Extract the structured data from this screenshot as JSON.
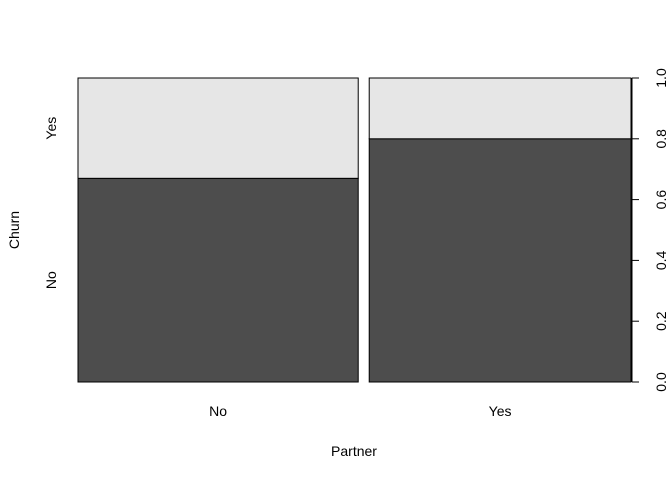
{
  "chart_data": {
    "type": "bar",
    "subtype": "spineplot",
    "xlabel": "Partner",
    "ylabel": "Churn",
    "categories": [
      "No",
      "Yes"
    ],
    "category_widths": [
      0.517,
      0.483
    ],
    "series": [
      {
        "name": "No",
        "values": [
          0.67,
          0.8
        ],
        "color": "#4d4d4d"
      },
      {
        "name": "Yes",
        "values": [
          0.33,
          0.2
        ],
        "color": "#e6e6e6"
      }
    ],
    "yticks": [
      {
        "value": 0.0,
        "label": "0.0"
      },
      {
        "value": 0.2,
        "label": "0.2"
      },
      {
        "value": 0.4,
        "label": "0.4"
      },
      {
        "value": 0.6,
        "label": "0.6"
      },
      {
        "value": 0.8,
        "label": "0.8"
      },
      {
        "value": 1.0,
        "label": "1.0"
      }
    ],
    "ylim": [
      0,
      1
    ],
    "legend": "none",
    "grid": false
  }
}
